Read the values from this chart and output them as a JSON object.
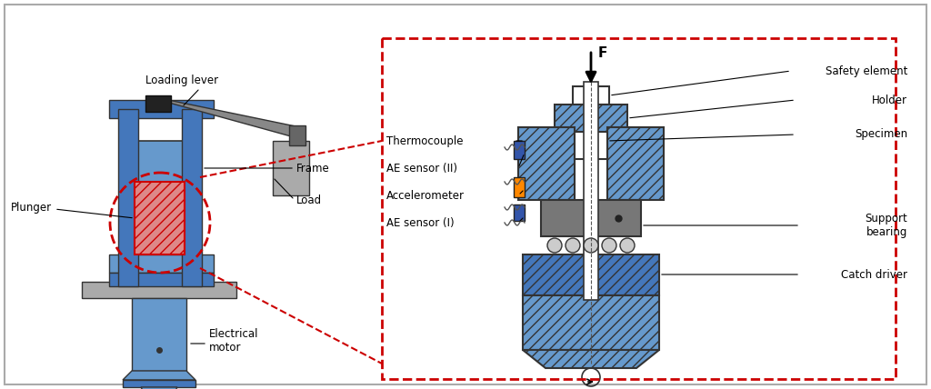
{
  "title": "",
  "bg_color": "#ffffff",
  "border_color": "#b0b0b0",
  "fig_width": 10.24,
  "fig_height": 4.28,
  "labels": {
    "loading_lever": "Loading lever",
    "frame": "Frame",
    "load": "Load",
    "plunger": "Plunger",
    "electrical_motor": "Electrical\nmotor",
    "thermocouple": "Thermocouple",
    "ae_sensor_ii": "AE sensor (II)",
    "accelerometer": "Accelerometer",
    "ae_sensor_i": "AE sensor (I)",
    "safety_element": "Safety element",
    "holder": "Holder",
    "specimen": "Specimen",
    "support_bearing": "Support\nbearing",
    "catch_driver": "Catch driver",
    "F": "F"
  },
  "colors": {
    "blue_light": "#6699cc",
    "blue_mid": "#4477bb",
    "blue_dark": "#2255aa",
    "red_dashed": "#cc0000",
    "gray": "#888888",
    "gray_dark": "#444444",
    "gray_light": "#cccccc",
    "orange": "#ff8800",
    "pink_red": "#cc4444",
    "white": "#ffffff",
    "black": "#000000",
    "hatch_blue": "#aabbdd",
    "navy": "#223355"
  }
}
